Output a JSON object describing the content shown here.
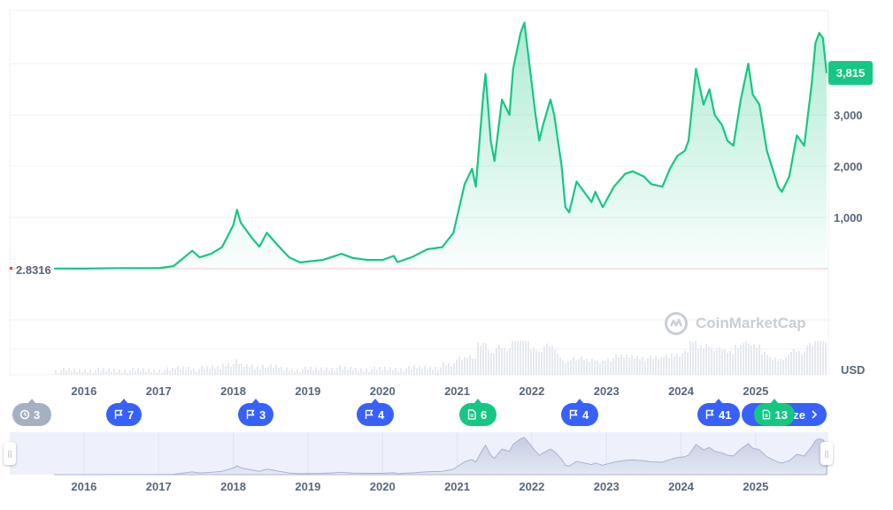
{
  "chart_data": {
    "type": "area",
    "ylim": [
      0,
      5000
    ],
    "y_ticks": [
      {
        "value": 1000,
        "label": "1,000"
      },
      {
        "value": 2000,
        "label": "2,000"
      },
      {
        "value": 3000,
        "label": "3,000"
      }
    ],
    "x_year_labels": [
      "2016",
      "2017",
      "2018",
      "2019",
      "2020",
      "2021",
      "2022",
      "2023",
      "2024",
      "2025"
    ],
    "navigator_year_labels": [
      "2016",
      "2017",
      "2018",
      "2019",
      "2020",
      "2021",
      "2022",
      "2023",
      "2024",
      "2025"
    ],
    "currency": "USD",
    "current_price_label": "3,815",
    "start_price_label": "2.8316",
    "series": [
      {
        "values": [
          [
            2015.6,
            2.8
          ],
          [
            2016.0,
            1.0
          ],
          [
            2016.5,
            12
          ],
          [
            2017.0,
            10
          ],
          [
            2017.2,
            50
          ],
          [
            2017.45,
            350
          ],
          [
            2017.55,
            220
          ],
          [
            2017.7,
            290
          ],
          [
            2017.85,
            420
          ],
          [
            2018.0,
            850
          ],
          [
            2018.05,
            1150
          ],
          [
            2018.1,
            900
          ],
          [
            2018.25,
            600
          ],
          [
            2018.35,
            430
          ],
          [
            2018.45,
            700
          ],
          [
            2018.6,
            450
          ],
          [
            2018.75,
            220
          ],
          [
            2018.9,
            120
          ],
          [
            2019.0,
            140
          ],
          [
            2019.2,
            170
          ],
          [
            2019.45,
            290
          ],
          [
            2019.6,
            210
          ],
          [
            2019.8,
            170
          ],
          [
            2020.0,
            170
          ],
          [
            2020.15,
            250
          ],
          [
            2020.2,
            130
          ],
          [
            2020.4,
            230
          ],
          [
            2020.6,
            380
          ],
          [
            2020.8,
            420
          ],
          [
            2020.95,
            700
          ],
          [
            2021.1,
            1650
          ],
          [
            2021.2,
            1950
          ],
          [
            2021.25,
            1600
          ],
          [
            2021.35,
            3400
          ],
          [
            2021.38,
            3800
          ],
          [
            2021.45,
            2500
          ],
          [
            2021.5,
            2100
          ],
          [
            2021.6,
            3300
          ],
          [
            2021.7,
            3000
          ],
          [
            2021.75,
            3900
          ],
          [
            2021.85,
            4600
          ],
          [
            2021.9,
            4800
          ],
          [
            2021.95,
            4200
          ],
          [
            2022.05,
            3000
          ],
          [
            2022.1,
            2500
          ],
          [
            2022.15,
            2800
          ],
          [
            2022.25,
            3300
          ],
          [
            2022.3,
            3000
          ],
          [
            2022.4,
            2000
          ],
          [
            2022.45,
            1200
          ],
          [
            2022.5,
            1100
          ],
          [
            2022.6,
            1700
          ],
          [
            2022.7,
            1500
          ],
          [
            2022.8,
            1300
          ],
          [
            2022.85,
            1500
          ],
          [
            2022.95,
            1200
          ],
          [
            2023.1,
            1600
          ],
          [
            2023.25,
            1850
          ],
          [
            2023.35,
            1900
          ],
          [
            2023.5,
            1800
          ],
          [
            2023.6,
            1650
          ],
          [
            2023.75,
            1600
          ],
          [
            2023.85,
            1950
          ],
          [
            2023.95,
            2200
          ],
          [
            2024.05,
            2300
          ],
          [
            2024.1,
            2500
          ],
          [
            2024.2,
            3900
          ],
          [
            2024.3,
            3200
          ],
          [
            2024.38,
            3500
          ],
          [
            2024.45,
            3000
          ],
          [
            2024.55,
            2800
          ],
          [
            2024.62,
            2500
          ],
          [
            2024.7,
            2400
          ],
          [
            2024.8,
            3300
          ],
          [
            2024.9,
            4000
          ],
          [
            2024.96,
            3400
          ],
          [
            2025.05,
            3200
          ],
          [
            2025.15,
            2300
          ],
          [
            2025.3,
            1600
          ],
          [
            2025.35,
            1500
          ],
          [
            2025.45,
            1800
          ],
          [
            2025.55,
            2600
          ],
          [
            2025.65,
            2400
          ],
          [
            2025.75,
            3600
          ],
          [
            2025.8,
            4400
          ],
          [
            2025.85,
            4600
          ],
          [
            2025.9,
            4500
          ],
          [
            2025.95,
            3815
          ]
        ]
      }
    ]
  },
  "watermark": {
    "text": "CoinMarketCap"
  },
  "events": [
    {
      "type": "history",
      "count": "3",
      "color": "#a6b0c3",
      "icon": "clock-icon"
    },
    {
      "type": "flag",
      "count": "7",
      "color": "#3861fb",
      "icon": "flag-icon"
    },
    {
      "type": "flag",
      "count": "3",
      "color": "#3861fb",
      "icon": "flag-icon"
    },
    {
      "type": "flag",
      "count": "4",
      "color": "#3861fb",
      "icon": "flag-icon"
    },
    {
      "type": "document",
      "count": "6",
      "color": "#16c784",
      "icon": "document-icon"
    },
    {
      "type": "flag",
      "count": "4",
      "color": "#3861fb",
      "icon": "flag-icon"
    },
    {
      "type": "flag",
      "count": "41",
      "color": "#3861fb",
      "icon": "flag-icon"
    },
    {
      "type": "document",
      "count": "13",
      "color": "#16c784",
      "icon": "document-icon"
    },
    {
      "type": "summarize",
      "label": "ze",
      "color": "#3861fb",
      "icon": "chevron-right-icon"
    }
  ]
}
